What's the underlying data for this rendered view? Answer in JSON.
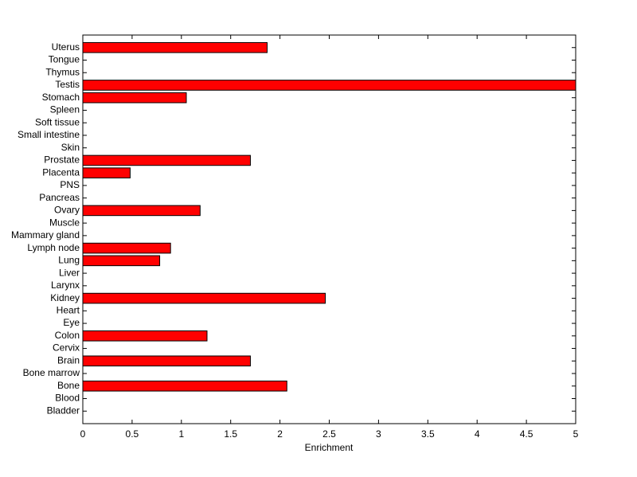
{
  "chart_data": {
    "type": "barh",
    "xlabel": "Enrichment",
    "categories": [
      "Bladder",
      "Blood",
      "Bone",
      "Bone marrow",
      "Brain",
      "Cervix",
      "Colon",
      "Eye",
      "Heart",
      "Kidney",
      "Larynx",
      "Liver",
      "Lung",
      "Lymph node",
      "Mammary gland",
      "Muscle",
      "Ovary",
      "Pancreas",
      "PNS",
      "Placenta",
      "Prostate",
      "Skin",
      "Small intestine",
      "Soft tissue",
      "Spleen",
      "Stomach",
      "Testis",
      "Thymus",
      "Tongue",
      "Uterus"
    ],
    "values": [
      0,
      0,
      2.07,
      0,
      1.7,
      0,
      1.26,
      0,
      0,
      2.46,
      0,
      0,
      0.78,
      0.89,
      0,
      0,
      1.19,
      0,
      0,
      0.48,
      1.7,
      0,
      0,
      0,
      0,
      1.05,
      5,
      0,
      0,
      1.87
    ],
    "color": "#ff0000",
    "xlim": [
      0,
      5
    ],
    "xticks": [
      0,
      0.5,
      1,
      1.5,
      2,
      2.5,
      3,
      3.5,
      4,
      4.5,
      5
    ]
  }
}
